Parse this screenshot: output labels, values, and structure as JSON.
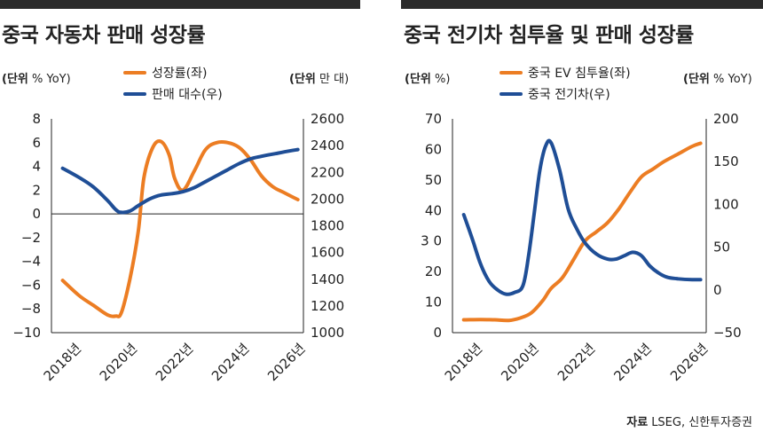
{
  "colors": {
    "orange": "#ec7d23",
    "blue": "#1f4e96",
    "axis": "#222222"
  },
  "source": {
    "label": "자료",
    "text": "LSEG, 신한투자증권"
  },
  "chart_data": [
    {
      "type": "line",
      "title": "중국 자동차 판매 성장률",
      "left_unit": {
        "bold": "(단위",
        "rest": "% YoY)"
      },
      "right_unit": {
        "bold": "(단위",
        "rest": "만 대)"
      },
      "x_ticks": [
        "2018년",
        "2020년",
        "2022년",
        "2024년",
        "2026년"
      ],
      "x_tick_values": [
        2018,
        2020,
        2022,
        2024,
        2026
      ],
      "xlim": [
        2017.5,
        2026.5
      ],
      "y_left": {
        "lim": [
          -10,
          8
        ],
        "ticks": [
          8,
          6,
          4,
          2,
          0,
          -2,
          -4,
          -6,
          -8,
          -10
        ],
        "tick_labels": [
          "8",
          "6",
          "4",
          "2",
          "0",
          "−2",
          "−4",
          "−6",
          "−8",
          "−10"
        ]
      },
      "y_right": {
        "lim": [
          1000,
          2600
        ],
        "ticks": [
          2600,
          2400,
          2200,
          2000,
          1800,
          1600,
          1400,
          1200,
          1000
        ],
        "tick_labels": [
          "2600",
          "2400",
          "2200",
          "2000",
          "1800",
          "1600",
          "1400",
          "1200",
          "1000"
        ]
      },
      "zero_line": true,
      "series": [
        {
          "name": "성장률(좌)",
          "axis": "left",
          "color": "#ec7d23",
          "x": [
            2017.9,
            2018.5,
            2019.0,
            2019.5,
            2019.8,
            2020.0,
            2020.3,
            2020.6,
            2020.8,
            2021.1,
            2021.4,
            2021.7,
            2021.9,
            2022.2,
            2022.6,
            2023.0,
            2023.4,
            2023.8,
            2024.2,
            2024.6,
            2025.0,
            2025.4,
            2025.8,
            2026.3
          ],
          "y": [
            -5.6,
            -6.9,
            -7.7,
            -8.5,
            -8.6,
            -8.3,
            -5.5,
            -1.5,
            3.0,
            5.5,
            6.1,
            5.0,
            3.0,
            2.0,
            3.6,
            5.4,
            6.0,
            6.0,
            5.6,
            4.6,
            3.2,
            2.3,
            1.8,
            1.2
          ]
        },
        {
          "name": "판매 대수(우)",
          "axis": "right",
          "color": "#1f4e96",
          "x": [
            2017.9,
            2018.5,
            2019.0,
            2019.5,
            2019.8,
            2020.0,
            2020.3,
            2020.6,
            2021.0,
            2021.4,
            2021.8,
            2022.2,
            2022.6,
            2023.0,
            2023.4,
            2023.8,
            2024.2,
            2024.6,
            2025.0,
            2025.5,
            2026.0,
            2026.3
          ],
          "y": [
            2230,
            2160,
            2090,
            1990,
            1920,
            1900,
            1910,
            1950,
            2000,
            2030,
            2040,
            2055,
            2085,
            2130,
            2175,
            2220,
            2265,
            2300,
            2320,
            2340,
            2360,
            2370
          ]
        }
      ]
    },
    {
      "type": "line",
      "title": "중국 전기차 침투율 및 판매 성장률",
      "left_unit": {
        "bold": "(단위",
        "rest": "%)"
      },
      "right_unit": {
        "bold": "(단위",
        "rest": "% YoY)"
      },
      "x_ticks": [
        "2018년",
        "2020년",
        "2022년",
        "2024년",
        "2026년"
      ],
      "x_tick_values": [
        2018,
        2020,
        2022,
        2024,
        2026
      ],
      "xlim": [
        2017.5,
        2026.5
      ],
      "y_left": {
        "lim": [
          0,
          70
        ],
        "ticks": [
          70,
          60,
          50,
          40,
          30,
          20,
          10,
          0
        ],
        "tick_labels": [
          "70",
          "60",
          "50",
          "40",
          "3 0",
          "20",
          "10",
          "0"
        ]
      },
      "y_right": {
        "lim": [
          -50,
          200
        ],
        "ticks": [
          200,
          150,
          100,
          50,
          0,
          -50
        ],
        "tick_labels": [
          "200",
          "150",
          "100",
          "50",
          "0",
          "−50"
        ]
      },
      "zero_line": false,
      "series": [
        {
          "name": "중국 EV 침투율(좌)",
          "axis": "left",
          "color": "#ec7d23",
          "x": [
            2017.9,
            2018.5,
            2019.0,
            2019.5,
            2019.9,
            2020.3,
            2020.7,
            2021.0,
            2021.4,
            2021.8,
            2022.2,
            2022.6,
            2023.0,
            2023.4,
            2023.8,
            2024.2,
            2024.6,
            2025.0,
            2025.5,
            2026.0,
            2026.3
          ],
          "y": [
            4.2,
            4.3,
            4.2,
            4.0,
            4.8,
            6.5,
            10.5,
            14.5,
            18.0,
            24.0,
            30.0,
            33.0,
            36.0,
            40.5,
            46.0,
            51.0,
            53.5,
            56.0,
            58.5,
            61.0,
            62.0
          ]
        },
        {
          "name": "중국 전기차(우)",
          "axis": "right",
          "color": "#1f4e96",
          "x": [
            2017.9,
            2018.2,
            2018.5,
            2018.8,
            2019.1,
            2019.4,
            2019.7,
            2020.0,
            2020.2,
            2020.4,
            2020.6,
            2020.8,
            2021.0,
            2021.3,
            2021.6,
            2021.9,
            2022.2,
            2022.6,
            2023.0,
            2023.3,
            2023.6,
            2023.9,
            2024.2,
            2024.5,
            2024.8,
            2025.1,
            2025.5,
            2026.0,
            2026.3
          ],
          "y": [
            88,
            60,
            30,
            10,
            0,
            -5,
            -3,
            5,
            40,
            90,
            140,
            168,
            172,
            140,
            95,
            72,
            55,
            42,
            36,
            36,
            40,
            44,
            40,
            28,
            20,
            15,
            13,
            12,
            12
          ]
        }
      ]
    }
  ]
}
